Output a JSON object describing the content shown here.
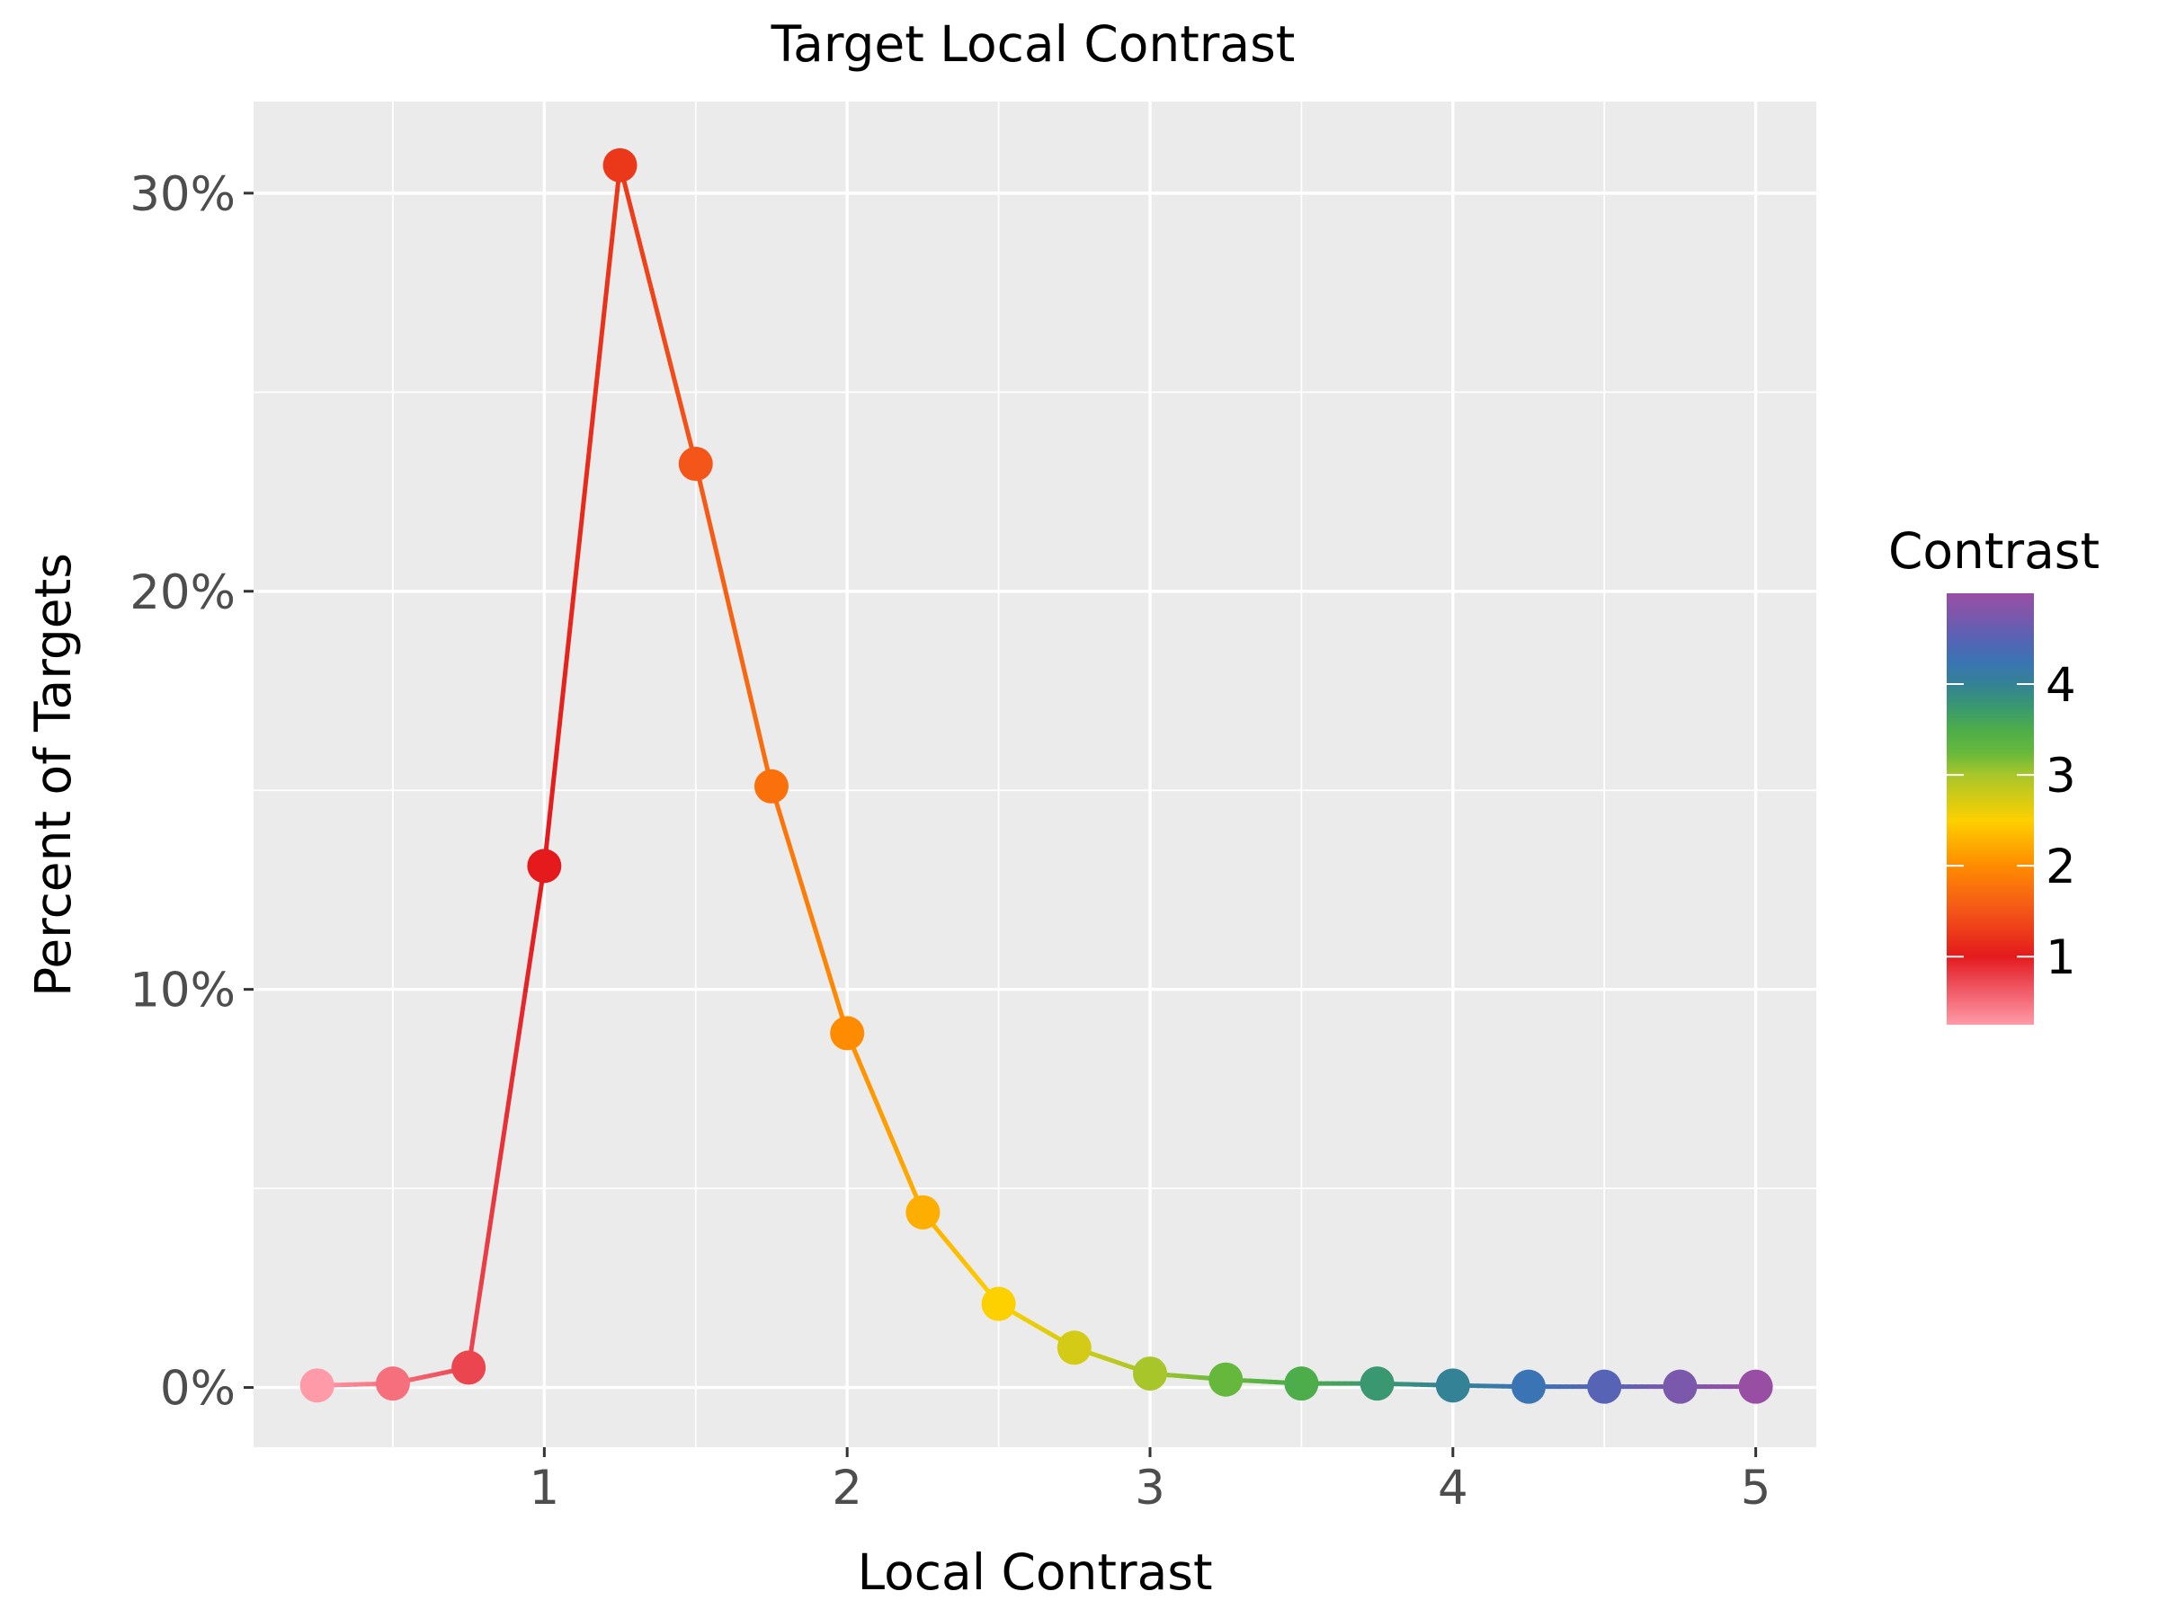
{
  "chart_data": {
    "type": "line",
    "title": "Target Local Contrast",
    "xlabel": "Local Contrast",
    "ylabel": "Percent of Targets",
    "xlim": [
      0.04,
      5.2
    ],
    "ylim": [
      -1.5,
      32.3
    ],
    "x_ticks": [
      1,
      2,
      3,
      4,
      5
    ],
    "x_tick_labels": [
      "1",
      "2",
      "3",
      "4",
      "5"
    ],
    "y_ticks": [
      0,
      10,
      20,
      30
    ],
    "y_tick_labels": [
      "0%",
      "10%",
      "20%",
      "30%"
    ],
    "grid": true,
    "markers": true,
    "x": [
      0.25,
      0.5,
      0.75,
      1.0,
      1.25,
      1.5,
      1.75,
      2.0,
      2.25,
      2.5,
      2.75,
      3.0,
      3.25,
      3.5,
      3.75,
      4.0,
      4.25,
      4.5,
      4.75,
      5.0
    ],
    "values": [
      0.05,
      0.1,
      0.5,
      13.1,
      30.7,
      23.2,
      15.1,
      8.9,
      4.4,
      2.1,
      1.0,
      0.35,
      0.2,
      0.1,
      0.1,
      0.05,
      0.02,
      0.02,
      0.02,
      0.02
    ],
    "legend": {
      "title": "Contrast",
      "placement": "right",
      "range": [
        0.25,
        5.0
      ],
      "ticks": [
        1,
        2,
        3,
        4
      ],
      "tick_labels": [
        "1",
        "2",
        "3",
        "4"
      ],
      "colors": [
        {
          "value": 0.25,
          "color": "#ff9aa8"
        },
        {
          "value": 0.5,
          "color": "#f5707c"
        },
        {
          "value": 0.75,
          "color": "#eb4650"
        },
        {
          "value": 1.0,
          "color": "#e41a1c"
        },
        {
          "value": 1.5,
          "color": "#f45518"
        },
        {
          "value": 2.0,
          "color": "#ff8c00"
        },
        {
          "value": 2.5,
          "color": "#fdd000"
        },
        {
          "value": 3.0,
          "color": "#a8c62a"
        },
        {
          "value": 3.25,
          "color": "#66b83c"
        },
        {
          "value": 3.5,
          "color": "#4dad4a"
        },
        {
          "value": 3.75,
          "color": "#3a9870"
        },
        {
          "value": 4.0,
          "color": "#348295"
        },
        {
          "value": 4.25,
          "color": "#3a74b4"
        },
        {
          "value": 4.5,
          "color": "#5763b5"
        },
        {
          "value": 4.75,
          "color": "#7a58ac"
        },
        {
          "value": 5.0,
          "color": "#984ea3"
        }
      ]
    }
  }
}
